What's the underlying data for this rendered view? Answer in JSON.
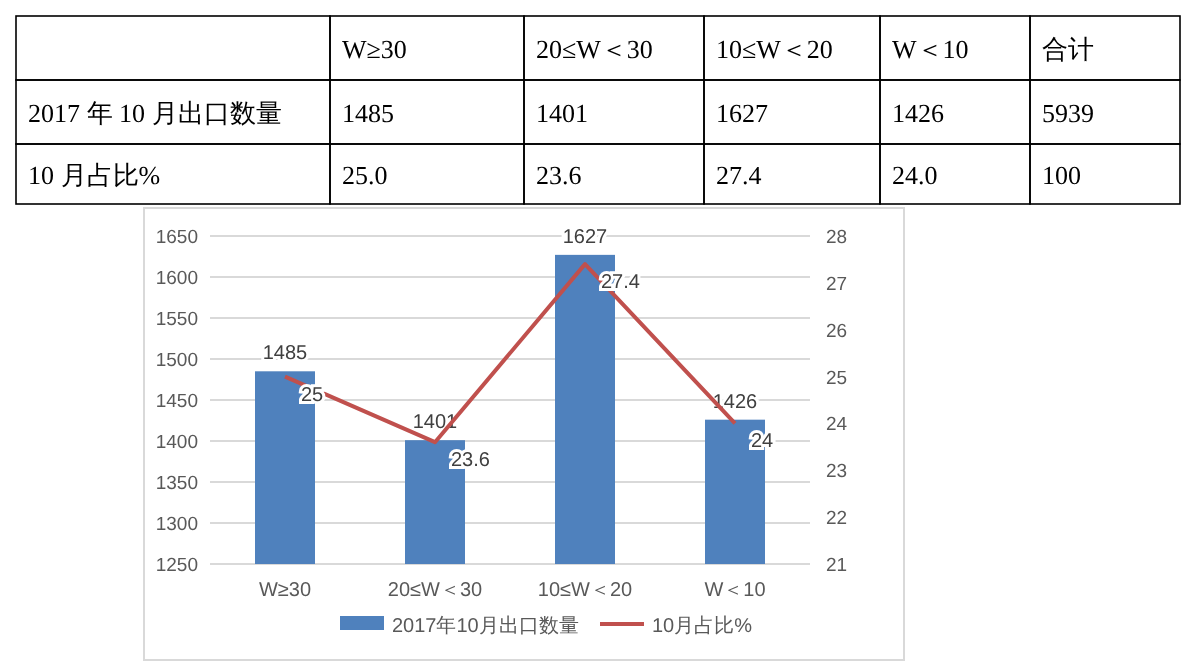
{
  "chart_data": {
    "type": "bar",
    "categories": [
      "W≥30",
      "20≤W＜30",
      "10≤W＜20",
      "W＜10"
    ],
    "series": [
      {
        "name": "2017年10月出口数量",
        "color": "#4f81bd",
        "values": [
          1485,
          1401,
          1627,
          1426
        ]
      },
      {
        "name": "10月占比%",
        "type": "line",
        "axis": "y2",
        "color": "#c0504d",
        "values": [
          25,
          23.6,
          27.4,
          24
        ]
      }
    ],
    "ylim": [
      1250,
      1650
    ],
    "yticks": [
      1250,
      1300,
      1350,
      1400,
      1450,
      1500,
      1550,
      1600,
      1650
    ],
    "y2lim": [
      21,
      28
    ],
    "y2ticks": [
      21,
      22,
      23,
      24,
      25,
      26,
      27,
      28
    ],
    "grid": "y",
    "legend": "bottom",
    "data_labels": true,
    "marker": "none",
    "annotations": [
      "合计",
      "2017 年 10 月出口数量",
      "1485",
      "1401",
      "1627",
      "1426",
      "5939",
      "10 月占比%",
      "25.0",
      "23.6",
      "27.4",
      "24.0",
      "100"
    ]
  }
}
